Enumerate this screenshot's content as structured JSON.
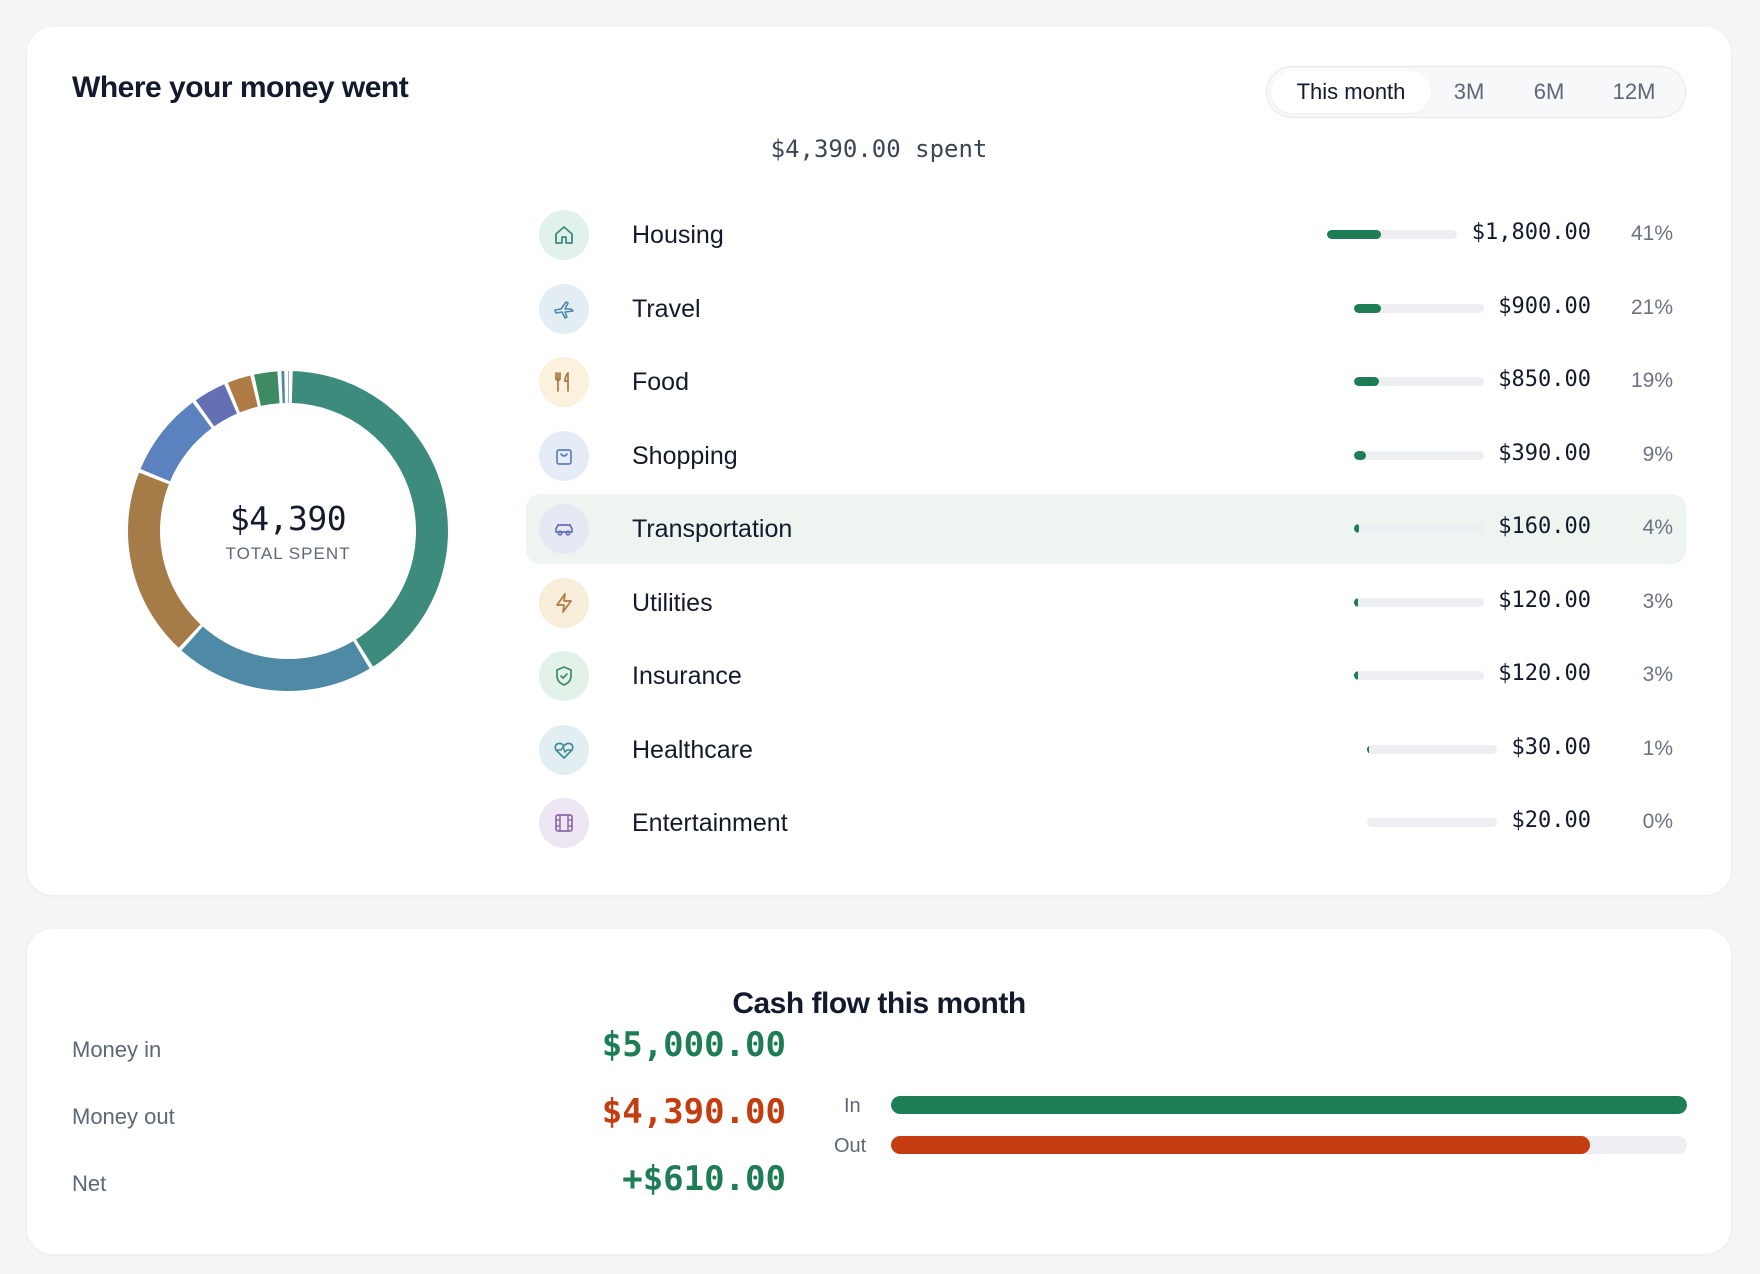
{
  "spending": {
    "title": "Where your money went",
    "tabs": [
      {
        "label": "This month",
        "active": true
      },
      {
        "label": "3M",
        "active": false
      },
      {
        "label": "6M",
        "active": false
      },
      {
        "label": "12M",
        "active": false
      }
    ],
    "summary": "$4,390.00 spent",
    "donut": {
      "total": "$4,390",
      "caption": "TOTAL SPENT"
    },
    "categories": [
      {
        "name": "Housing",
        "icon": "home-icon",
        "amount": "$1,800.00",
        "pct": "41%",
        "share": 41,
        "color": "#3d8b7d",
        "icon_bg": "#e1f1ec",
        "icon_color": "#3d8b7d"
      },
      {
        "name": "Travel",
        "icon": "airplane-icon",
        "amount": "$900.00",
        "pct": "21%",
        "share": 21,
        "color": "#4e89a6",
        "icon_bg": "#e2eef4",
        "icon_color": "#4e89a6"
      },
      {
        "name": "Food",
        "icon": "utensils-icon",
        "amount": "$850.00",
        "pct": "19%",
        "share": 19,
        "color": "#a57b47",
        "icon_bg": "#fbf1dc",
        "icon_color": "#a57b47"
      },
      {
        "name": "Shopping",
        "icon": "shopping-bag-icon",
        "amount": "$390.00",
        "pct": "9%",
        "share": 9,
        "color": "#5b81bf",
        "icon_bg": "#e6ecf5",
        "icon_color": "#5b81bf"
      },
      {
        "name": "Transportation",
        "icon": "car-icon",
        "amount": "$160.00",
        "pct": "4%",
        "share": 4,
        "color": "#6470b3",
        "icon_bg": "#e6e8f4",
        "icon_color": "#6470b3"
      },
      {
        "name": "Utilities",
        "icon": "lightning-icon",
        "amount": "$120.00",
        "pct": "3%",
        "share": 3,
        "color": "#b07a45",
        "icon_bg": "#f8edd9",
        "icon_color": "#b07a45"
      },
      {
        "name": "Insurance",
        "icon": "shield-icon",
        "amount": "$120.00",
        "pct": "3%",
        "share": 3,
        "color": "#3e8a63",
        "icon_bg": "#e2f2e8",
        "icon_color": "#3e8a63"
      },
      {
        "name": "Healthcare",
        "icon": "heart-pulse-icon",
        "amount": "$30.00",
        "pct": "1%",
        "share": 1,
        "color": "#4d8aa8",
        "icon_bg": "#e1eff2",
        "icon_color": "#3d8a93"
      },
      {
        "name": "Entertainment",
        "icon": "film-icon",
        "amount": "$20.00",
        "pct": "0%",
        "share": 0,
        "color": "#8a6aa8",
        "icon_bg": "#efe6f4",
        "icon_color": "#8a6aa8"
      }
    ],
    "highlighted_category": "Transportation",
    "accent": "#1e7d55"
  },
  "chart_data": {
    "type": "pie",
    "categories": [
      "Housing",
      "Travel",
      "Food",
      "Shopping",
      "Transportation",
      "Utilities",
      "Insurance",
      "Healthcare",
      "Entertainment"
    ],
    "values": [
      1800,
      900,
      850,
      390,
      160,
      120,
      120,
      30,
      20
    ],
    "title": ""
  },
  "cashflow": {
    "title": "Cash flow this month",
    "rows": [
      {
        "label": "Money in",
        "value": "$5,000.00",
        "kind": "in"
      },
      {
        "label": "Money out",
        "value": "$4,390.00",
        "kind": "out"
      },
      {
        "label": "Net",
        "value": "+$610.00",
        "kind": "net"
      }
    ],
    "bars": [
      {
        "label": "In",
        "fraction": 1.0,
        "color": "#1e7d55"
      },
      {
        "label": "Out",
        "fraction": 0.878,
        "color": "#c43d10"
      }
    ]
  }
}
